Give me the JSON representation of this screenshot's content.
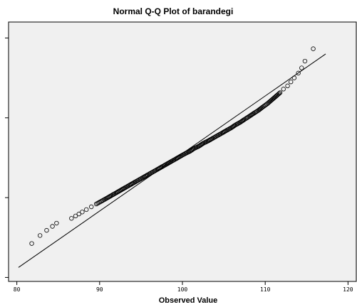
{
  "chart_data": {
    "type": "scatter",
    "title": "Normal Q-Q Plot of barandegi",
    "xlabel": "Observed Value",
    "ylabel": "",
    "xlim": [
      79,
      121
    ],
    "ylim": [
      -3.1,
      3.4
    ],
    "x_ticks": [
      80,
      90,
      100,
      110,
      120
    ],
    "x_tick_labels": [
      "80",
      "90",
      "100",
      "110",
      "120"
    ],
    "y_ticks": [
      -2,
      0,
      2
    ],
    "y_tick_labels": [],
    "y_tick_marks": [
      -3,
      -1,
      1,
      3
    ],
    "grid": false,
    "legend": "none",
    "reference_line": {
      "x": [
        80.2,
        117.3
      ],
      "y": [
        -2.75,
        2.6
      ]
    },
    "series": [
      {
        "x": [
          81.8,
          82.8,
          83.6,
          84.3,
          84.8,
          86.6,
          87.1,
          87.5,
          87.9,
          88.4,
          89.0,
          89.6,
          90.3,
          90.9,
          91.4,
          92.0,
          92.5,
          93.0,
          93.6,
          94.1,
          94.7,
          95.3,
          95.8,
          96.4,
          97.0,
          97.5,
          98.1,
          98.6,
          99.2,
          99.7,
          100.3,
          100.9,
          101.4,
          102.0,
          102.5,
          103.1,
          103.6,
          104.2,
          104.8,
          105.3,
          105.9,
          106.4,
          107.0,
          107.5,
          108.1,
          108.6,
          109.2,
          109.7,
          110.3,
          110.8,
          111.3,
          111.8,
          112.2,
          112.7,
          113.1,
          113.5,
          114.0,
          114.4,
          114.8,
          115.8
        ],
        "y": [
          -2.15,
          -1.95,
          -1.82,
          -1.72,
          -1.64,
          -1.52,
          -1.46,
          -1.41,
          -1.36,
          -1.3,
          -1.23,
          -1.16,
          -1.08,
          -1.01,
          -0.95,
          -0.88,
          -0.82,
          -0.76,
          -0.69,
          -0.63,
          -0.56,
          -0.49,
          -0.43,
          -0.36,
          -0.29,
          -0.23,
          -0.16,
          -0.1,
          -0.03,
          0.03,
          0.1,
          0.16,
          0.23,
          0.29,
          0.36,
          0.42,
          0.48,
          0.55,
          0.62,
          0.68,
          0.75,
          0.82,
          0.89,
          0.96,
          1.04,
          1.11,
          1.19,
          1.27,
          1.36,
          1.45,
          1.54,
          1.63,
          1.72,
          1.8,
          1.9,
          2.0,
          2.12,
          2.25,
          2.42,
          2.73
        ]
      }
    ]
  }
}
